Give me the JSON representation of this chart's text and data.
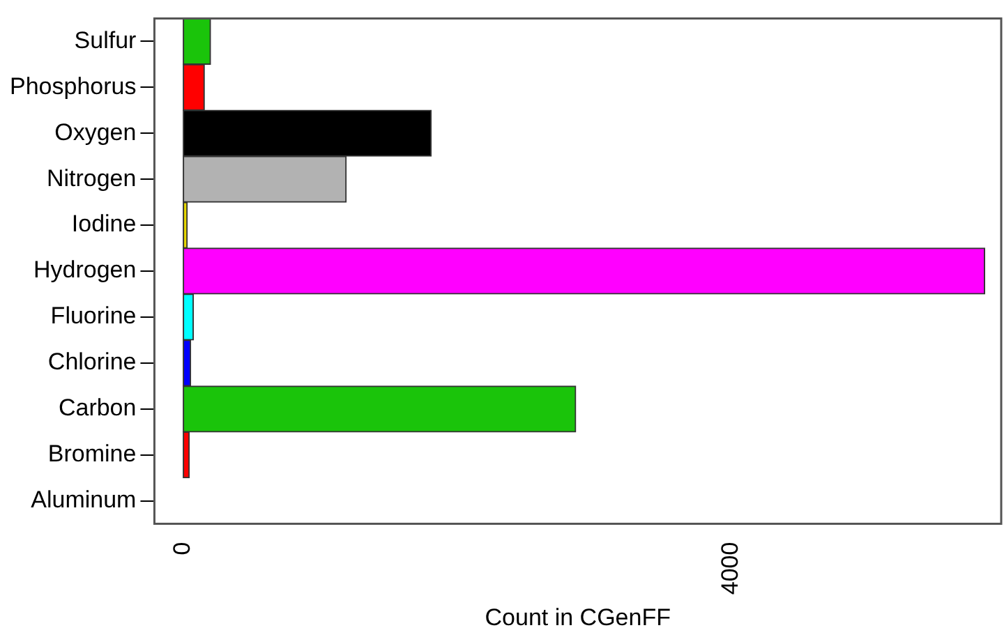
{
  "chart_data": {
    "type": "bar",
    "orientation": "horizontal",
    "xlabel": "Count in CGenFF",
    "categories": [
      "Sulfur",
      "Phosphorus",
      "Oxygen",
      "Nitrogen",
      "Iodine",
      "Hydrogen",
      "Fluorine",
      "Chlorine",
      "Carbon",
      "Bromine",
      "Aluminum"
    ],
    "values": [
      200,
      155,
      1810,
      1190,
      30,
      5850,
      75,
      55,
      2865,
      45,
      0
    ],
    "colors": [
      "#1ac40a",
      "#ff0000",
      "#000000",
      "#b2b2b2",
      "#e6d800",
      "#ff00ff",
      "#00ffff",
      "#0000ff",
      "#1ac40a",
      "#ff0000",
      "#1ac40a"
    ],
    "xlim": [
      -210,
      5970
    ],
    "xticks": [
      0,
      4000
    ],
    "grid": false,
    "legend": false
  }
}
